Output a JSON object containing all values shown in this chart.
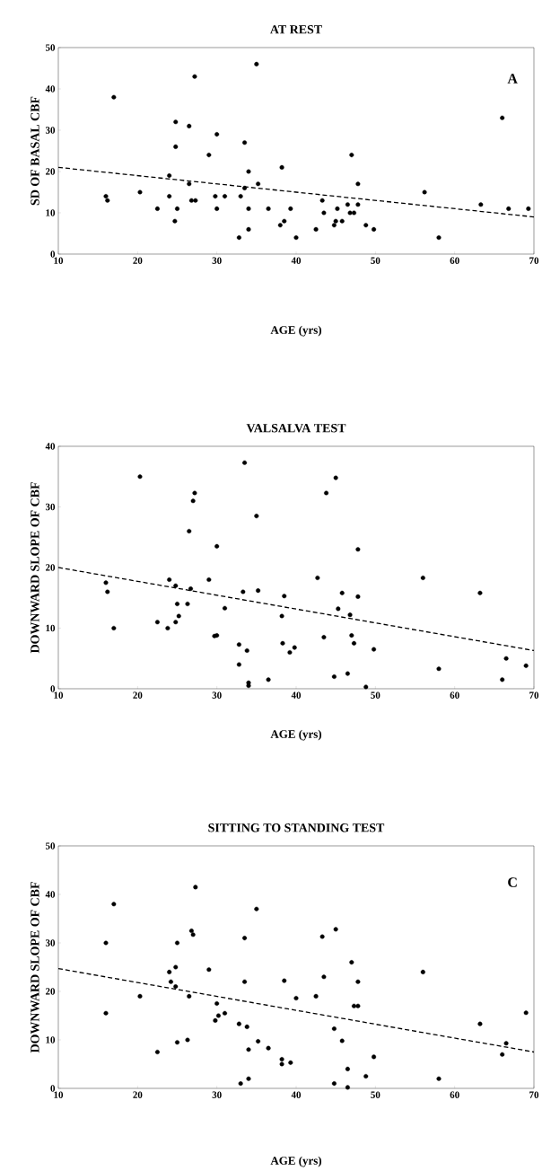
{
  "chart_data": [
    {
      "type": "scatter",
      "title": "AT REST",
      "xlabel": "AGE  (yrs)",
      "ylabel": "SD OF BASAL CBF",
      "annotations": [
        "A"
      ],
      "xlim": [
        10,
        70
      ],
      "ylim": [
        0,
        50
      ],
      "xticks": [
        10,
        20,
        30,
        40,
        50,
        60,
        70
      ],
      "yticks": [
        0,
        10,
        20,
        30,
        40,
        50
      ],
      "series": [
        {
          "type": "scatter",
          "marker": "circle",
          "color": "#000000",
          "x": [
            16,
            16.2,
            17,
            20.3,
            22.5,
            24,
            24,
            24.7,
            24.8,
            24.8,
            25,
            26.5,
            26.5,
            26.8,
            27.2,
            27.3,
            29,
            29.8,
            30,
            30,
            31,
            32.8,
            33,
            33.5,
            33.5,
            34,
            34,
            34,
            35,
            35.2,
            36.5,
            38,
            38.2,
            38.5,
            39.3,
            40,
            42.5,
            43.3,
            43.5,
            44.8,
            45,
            45.2,
            45.8,
            46.5,
            46.8,
            47,
            47.3,
            47.8,
            47.8,
            48.8,
            49.8,
            56.2,
            58,
            63.3,
            66,
            66.8,
            69.3
          ],
          "values": [
            14,
            13,
            38,
            15,
            11,
            19,
            14,
            8,
            32,
            26,
            11,
            17,
            31,
            13,
            43,
            13,
            24,
            14,
            29,
            11,
            14,
            4,
            14,
            27,
            16,
            20,
            11,
            6,
            46,
            17,
            11,
            7,
            21,
            8,
            11,
            4,
            6,
            13,
            10,
            7,
            8,
            11,
            8,
            12,
            10,
            24,
            10,
            17,
            12,
            7,
            6,
            15,
            4,
            12,
            33,
            11,
            11
          ]
        },
        {
          "type": "line",
          "line_style": "dashed",
          "marker": "none",
          "color": "#000000",
          "x": [
            10,
            70
          ],
          "values": [
            21,
            9
          ]
        }
      ]
    },
    {
      "type": "scatter",
      "title": "VALSALVA TEST",
      "xlabel": "AGE  (yrs)",
      "ylabel": "DOWNWARD SLOPE OF CBF",
      "xlim": [
        10,
        70
      ],
      "ylim": [
        0,
        40
      ],
      "xticks": [
        10,
        20,
        30,
        40,
        50,
        60,
        70
      ],
      "yticks": [
        0,
        10,
        20,
        30,
        40
      ],
      "series": [
        {
          "type": "scatter",
          "marker": "circle",
          "color": "#000000",
          "x": [
            16,
            16.2,
            17,
            20.3,
            22.5,
            23.8,
            24,
            24.8,
            24.8,
            25,
            25.2,
            26.3,
            26.5,
            26.7,
            27,
            27.2,
            29,
            29.7,
            30,
            30,
            31,
            32.8,
            32.8,
            33.5,
            33.3,
            34,
            34,
            33.8,
            35,
            35.2,
            36.5,
            38.2,
            38.3,
            38.5,
            39.2,
            39.8,
            42.7,
            43.5,
            43.8,
            44.8,
            45,
            45.3,
            45.8,
            46.5,
            46.8,
            47,
            47.3,
            47.8,
            47.8,
            48.8,
            49.8,
            56,
            58,
            63.2,
            66,
            66.5,
            69
          ],
          "values": [
            17.5,
            16,
            10,
            35,
            11,
            10,
            18,
            17,
            11,
            14,
            12,
            14,
            26,
            16.5,
            31,
            32.3,
            18,
            8.7,
            23.5,
            8.8,
            13.3,
            7.3,
            4,
            37.3,
            16,
            0.5,
            1,
            6.3,
            28.5,
            16.2,
            1.5,
            12,
            7.5,
            15.3,
            6,
            6.8,
            18.3,
            8.5,
            32.3,
            2,
            34.8,
            13.2,
            15.8,
            2.5,
            12.2,
            8.8,
            7.5,
            23,
            15.2,
            0.3,
            6.5,
            18.3,
            3.3,
            15.8,
            1.5,
            5,
            3.8
          ]
        },
        {
          "type": "line",
          "line_style": "dashed",
          "marker": "none",
          "color": "#000000",
          "x": [
            10,
            70
          ],
          "values": [
            20,
            6.3
          ]
        }
      ]
    },
    {
      "type": "scatter",
      "title": "SITTING TO STANDING TEST",
      "xlabel": "AGE  (yrs)",
      "ylabel": "DOWNWARD SLOPE OF CBF",
      "annotations": [
        "C"
      ],
      "xlim": [
        10,
        70
      ],
      "ylim": [
        0,
        50
      ],
      "xticks": [
        10,
        20,
        30,
        40,
        50,
        60,
        70
      ],
      "yticks": [
        0,
        10,
        20,
        30,
        40,
        50
      ],
      "series": [
        {
          "type": "scatter",
          "marker": "circle",
          "color": "#000000",
          "x": [
            16,
            16,
            17,
            20.3,
            22.5,
            24,
            24.2,
            24.8,
            24.8,
            25,
            25,
            26.3,
            26.5,
            26.8,
            27,
            27.3,
            29,
            29.8,
            30,
            30.2,
            31,
            32.8,
            33,
            33.5,
            33.5,
            33.8,
            34,
            34,
            35,
            35.2,
            36.5,
            38.2,
            38.2,
            38.5,
            39.3,
            40,
            42.5,
            43.3,
            43.5,
            44.8,
            44.8,
            45,
            45.8,
            46.5,
            46.5,
            47,
            47.3,
            47.8,
            47.8,
            48.8,
            49.8,
            56,
            58,
            63.2,
            66,
            66.5,
            69
          ],
          "values": [
            15.5,
            30,
            38,
            19,
            7.5,
            24,
            22,
            25,
            21,
            9.5,
            30,
            10,
            19,
            32.5,
            31.7,
            41.5,
            24.5,
            14,
            17.5,
            15,
            15.5,
            13.3,
            1,
            31,
            22,
            12.7,
            8,
            2,
            37,
            9.7,
            8.3,
            6,
            5,
            22.2,
            5.3,
            18.6,
            19,
            31.3,
            23,
            1,
            12.3,
            32.8,
            9.8,
            4,
            0.2,
            26,
            17,
            22,
            17,
            2.5,
            6.5,
            24,
            2,
            13.3,
            7,
            9.3,
            15.6
          ]
        },
        {
          "type": "line",
          "line_style": "dashed",
          "marker": "none",
          "color": "#000000",
          "x": [
            10,
            70
          ],
          "values": [
            24.7,
            7.5
          ]
        }
      ]
    }
  ]
}
